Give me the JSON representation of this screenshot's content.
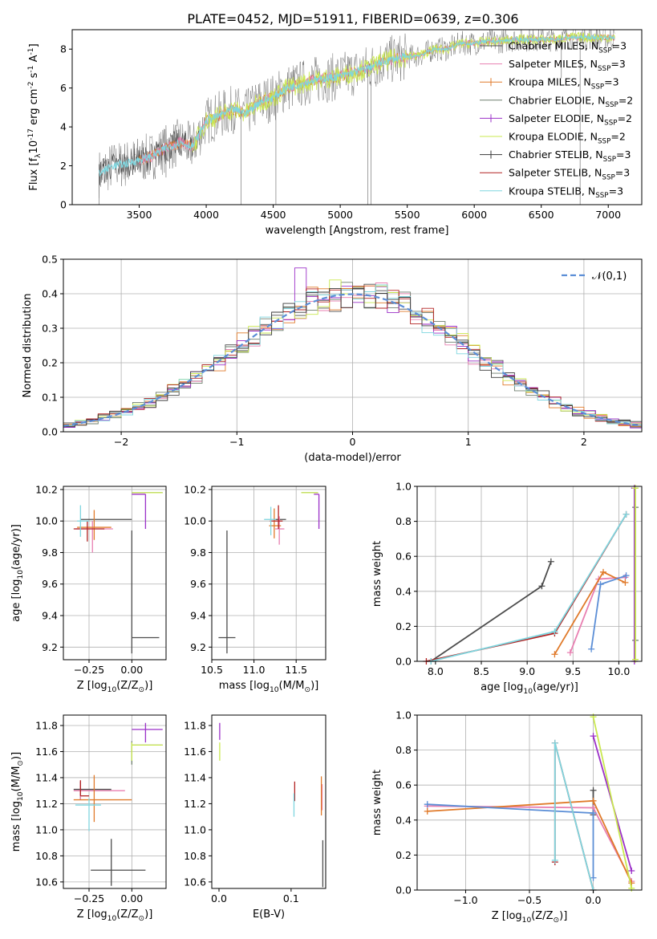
{
  "figure_title": "PLATE=0452, MJD=51911, FIBERID=0639, z=0.306",
  "colors": {
    "chabrier_miles": "#4d4d4d",
    "salpeter_miles": "#e87fb1",
    "kroupa_miles": "#e07a2a",
    "chabrier_elodie": "#6f7f6f",
    "salpeter_elodie": "#9b30c8",
    "kroupa_elodie": "#c9e84f",
    "chabrier_stelib": "#3a3a3a",
    "salpeter_stelib": "#b22222",
    "kroupa_stelib": "#7fd6df",
    "normal": "#5b8ed6",
    "grid": "#b0b0b0"
  },
  "chart_data": [
    {
      "id": "spectrum",
      "type": "line",
      "xlabel": "wavelength [Angstrom, rest frame]",
      "ylabel": "Flux [f$_\\lambda$10$^{-17}$ erg cm$^{-2}$ s$^{-1}$ A$^{-1}$]",
      "xlim": [
        3000,
        7250
      ],
      "ylim": [
        0,
        9
      ],
      "xticks": [
        3500,
        4000,
        4500,
        5000,
        5500,
        6000,
        6500,
        7000
      ],
      "yticks": [
        0,
        2,
        4,
        6,
        8
      ],
      "grid": false,
      "legend_position": "top-right",
      "legend": [
        {
          "label": "Chabrier MILES, N$_{SSP}$=3",
          "color_key": "chabrier_miles"
        },
        {
          "label": "Salpeter MILES, N$_{SSP}$=3",
          "color_key": "salpeter_miles"
        },
        {
          "label": "Kroupa MILES, N$_{SSP}$=3",
          "color_key": "kroupa_miles"
        },
        {
          "label": "Chabrier ELODIE, N$_{SSP}$=2",
          "color_key": "chabrier_elodie"
        },
        {
          "label": "Salpeter ELODIE, N$_{SSP}$=2",
          "color_key": "salpeter_elodie"
        },
        {
          "label": "Kroupa ELODIE, N$_{SSP}$=2",
          "color_key": "kroupa_elodie"
        },
        {
          "label": "Chabrier STELIB, N$_{SSP}$=3",
          "color_key": "chabrier_stelib"
        },
        {
          "label": "Salpeter STELIB, N$_{SSP}$=3",
          "color_key": "salpeter_stelib"
        },
        {
          "label": "Kroupa STELIB, N$_{SSP}$=3",
          "color_key": "kroupa_stelib"
        }
      ],
      "continuum": [
        [
          3200,
          1.6
        ],
        [
          3300,
          2.0
        ],
        [
          3400,
          2.1
        ],
        [
          3500,
          2.3
        ],
        [
          3600,
          2.5
        ],
        [
          3700,
          2.9
        ],
        [
          3800,
          3.2
        ],
        [
          3900,
          3.0
        ],
        [
          4000,
          4.3
        ],
        [
          4100,
          4.6
        ],
        [
          4200,
          4.9
        ],
        [
          4300,
          4.7
        ],
        [
          4400,
          5.3
        ],
        [
          4500,
          5.5
        ],
        [
          4600,
          6.0
        ],
        [
          4700,
          6.2
        ],
        [
          4800,
          6.4
        ],
        [
          4900,
          6.5
        ],
        [
          5000,
          6.6
        ],
        [
          5100,
          6.8
        ],
        [
          5200,
          7.0
        ],
        [
          5300,
          7.3
        ],
        [
          5400,
          7.5
        ],
        [
          5500,
          7.6
        ],
        [
          5600,
          7.7
        ],
        [
          5700,
          8.0
        ],
        [
          5800,
          8.0
        ],
        [
          5900,
          8.3
        ],
        [
          6000,
          8.3
        ],
        [
          6100,
          8.4
        ],
        [
          6200,
          8.4
        ],
        [
          6300,
          8.5
        ],
        [
          6400,
          8.5
        ],
        [
          6500,
          8.5
        ],
        [
          6600,
          8.5
        ],
        [
          6700,
          8.6
        ],
        [
          6800,
          8.6
        ],
        [
          6900,
          8.6
        ],
        [
          7000,
          8.6
        ],
        [
          7050,
          8.6
        ]
      ]
    },
    {
      "id": "residuals",
      "type": "line",
      "xlabel": "(data-model)/error",
      "ylabel": "Normed distribution",
      "xlim": [
        -2.5,
        2.5
      ],
      "ylim": [
        0,
        0.5
      ],
      "xticks": [
        -2,
        -1,
        0,
        1,
        2
      ],
      "yticks": [
        0.0,
        0.1,
        0.2,
        0.3,
        0.4,
        0.5
      ],
      "grid": true,
      "legend_position": "top-right",
      "legend": [
        {
          "label": "$\\mathcal{N}(0,1)$",
          "color_key": "normal"
        }
      ],
      "hist_bin_width": 0.1,
      "hist_start": -2.5
    },
    {
      "id": "age_vs_Z",
      "type": "scatter",
      "xlabel": "Z [log$_{10}$(Z/Z$_\\odot$)]",
      "ylabel": "age  [log$_{10}$(age/yr)]",
      "xlim": [
        -0.4,
        0.2
      ],
      "ylim": [
        9.12,
        10.22
      ],
      "xticks": [
        -0.25,
        0.0
      ],
      "yticks": [
        9.2,
        9.4,
        9.6,
        9.8,
        10.0,
        10.2
      ],
      "grid": true,
      "points": [
        {
          "key": "chabrier_miles",
          "x": 0.0,
          "y": 9.26,
          "xerr": [
            0.0,
            0.16
          ],
          "yerr": [
            0.1,
            0.68
          ]
        },
        {
          "key": "chabrier_miles",
          "x": -0.18,
          "y": 10.01,
          "xerr": [
            0.12,
            0.18
          ],
          "yerr": [
            0.0,
            0.0
          ]
        },
        {
          "key": "salpeter_miles",
          "x": -0.23,
          "y": 9.95,
          "xerr": [
            0.1,
            0.12
          ],
          "yerr": [
            0.15,
            0.05
          ]
        },
        {
          "key": "kroupa_miles",
          "x": -0.22,
          "y": 9.96,
          "xerr": [
            0.1,
            0.1
          ],
          "yerr": [
            0.08,
            0.11
          ]
        },
        {
          "key": "chabrier_elodie",
          "x": 0.0,
          "y": 10.18,
          "xerr": [
            0.0,
            0.18
          ],
          "yerr": [
            0.0,
            0.0
          ]
        },
        {
          "key": "salpeter_elodie",
          "x": 0.08,
          "y": 10.17,
          "xerr": [
            0.08,
            0.0
          ],
          "yerr": [
            0.22,
            0.0
          ]
        },
        {
          "key": "kroupa_elodie",
          "x": 0.0,
          "y": 10.18,
          "xerr": [
            0.0,
            0.18
          ],
          "yerr": [
            0.0,
            0.0
          ]
        },
        {
          "key": "salpeter_stelib",
          "x": -0.26,
          "y": 9.95,
          "xerr": [
            0.08,
            0.1
          ],
          "yerr": [
            0.08,
            0.05
          ]
        },
        {
          "key": "kroupa_stelib",
          "x": -0.3,
          "y": 10.0,
          "xerr": [
            0.02,
            0.05
          ],
          "yerr": [
            0.1,
            0.1
          ]
        }
      ]
    },
    {
      "id": "age_vs_mass",
      "type": "scatter",
      "xlabel": "mass [log$_{10}$(M/M$_\\odot$)]",
      "ylabel": "",
      "xlim": [
        10.5,
        11.85
      ],
      "ylim": [
        9.12,
        10.22
      ],
      "xticks": [
        10.5,
        11.0,
        11.5
      ],
      "yticks": [
        9.2,
        9.4,
        9.6,
        9.8,
        10.0,
        10.2
      ],
      "grid": true,
      "points": [
        {
          "key": "chabrier_miles",
          "x": 10.68,
          "y": 9.26,
          "xerr": [
            0.1,
            0.1
          ],
          "yerr": [
            0.1,
            0.68
          ]
        },
        {
          "key": "chabrier_miles",
          "x": 11.33,
          "y": 10.01,
          "xerr": [
            0.1,
            0.05
          ],
          "yerr": [
            0.0,
            0.0
          ]
        },
        {
          "key": "salpeter_miles",
          "x": 11.3,
          "y": 9.95,
          "xerr": [
            0.05,
            0.06
          ],
          "yerr": [
            0.1,
            0.08
          ]
        },
        {
          "key": "kroupa_miles",
          "x": 11.24,
          "y": 9.97,
          "xerr": [
            0.06,
            0.08
          ],
          "yerr": [
            0.08,
            0.11
          ]
        },
        {
          "key": "chabrier_elodie",
          "x": 11.66,
          "y": 10.18,
          "xerr": [
            0.1,
            0.1
          ],
          "yerr": [
            0.0,
            0.0
          ]
        },
        {
          "key": "salpeter_elodie",
          "x": 11.77,
          "y": 10.17,
          "xerr": [
            0.06,
            0.0
          ],
          "yerr": [
            0.22,
            0.0
          ]
        },
        {
          "key": "kroupa_elodie",
          "x": 11.66,
          "y": 10.18,
          "xerr": [
            0.1,
            0.1
          ],
          "yerr": [
            0.0,
            0.0
          ]
        },
        {
          "key": "salpeter_stelib",
          "x": 11.29,
          "y": 10.0,
          "xerr": [
            0.1,
            0.05
          ],
          "yerr": [
            0.05,
            0.1
          ]
        },
        {
          "key": "kroupa_stelib",
          "x": 11.2,
          "y": 10.01,
          "xerr": [
            0.08,
            0.06
          ],
          "yerr": [
            0.1,
            0.08
          ]
        }
      ]
    },
    {
      "id": "weight_vs_age",
      "type": "line",
      "xlabel": "age  [log$_{10}$(age/yr)]",
      "ylabel": "mass weight",
      "xlim": [
        7.8,
        10.25
      ],
      "ylim": [
        0,
        1
      ],
      "xticks": [
        8.0,
        8.5,
        9.0,
        9.5,
        10.0
      ],
      "yticks": [
        0.0,
        0.2,
        0.4,
        0.6,
        0.8,
        1.0
      ],
      "grid": true,
      "series": [
        {
          "key": "chabrier_miles",
          "x": [
            7.95,
            9.16,
            9.26
          ],
          "y": [
            0.0,
            0.43,
            0.57
          ]
        },
        {
          "key": "salpeter_miles",
          "x": [
            9.47,
            9.78,
            10.07
          ],
          "y": [
            0.05,
            0.47,
            0.48
          ]
        },
        {
          "key": "kroupa_miles",
          "x": [
            9.3,
            9.83,
            10.07
          ],
          "y": [
            0.04,
            0.51,
            0.45
          ]
        },
        {
          "key": "chabrier_elodie",
          "x": [
            10.18,
            10.18
          ],
          "y": [
            0.12,
            0.88
          ]
        },
        {
          "key": "salpeter_elodie",
          "x": [
            10.17,
            10.17
          ],
          "y": [
            0.0,
            0.99
          ]
        },
        {
          "key": "kroupa_elodie",
          "x": [
            10.18,
            10.18
          ],
          "y": [
            0.01,
            0.99
          ]
        },
        {
          "key": "normal",
          "x": [
            9.7,
            9.8,
            10.08
          ],
          "y": [
            0.07,
            0.44,
            0.49
          ]
        },
        {
          "key": "salpeter_stelib",
          "x": [
            7.9,
            9.3,
            10.08
          ],
          "y": [
            0.0,
            0.16,
            0.84
          ]
        },
        {
          "key": "kroupa_stelib",
          "x": [
            7.95,
            9.3,
            10.08
          ],
          "y": [
            0.0,
            0.17,
            0.84
          ]
        }
      ]
    },
    {
      "id": "mass_vs_Z",
      "type": "scatter",
      "xlabel": "Z [log$_{10}$(Z/Z$_\\odot$)]",
      "ylabel": "mass [log$_{10}$(M/M$_\\odot$)]",
      "xlim": [
        -0.4,
        0.2
      ],
      "ylim": [
        10.55,
        11.88
      ],
      "xticks": [
        -0.25,
        0.0
      ],
      "yticks": [
        10.6,
        10.8,
        11.0,
        11.2,
        11.4,
        11.6,
        11.8
      ],
      "grid": true,
      "points": [
        {
          "key": "chabrier_miles",
          "x": -0.12,
          "y": 10.69,
          "xerr": [
            0.12,
            0.2
          ],
          "yerr": [
            0.12,
            0.24
          ]
        },
        {
          "key": "chabrier_miles",
          "x": -0.3,
          "y": 11.31,
          "xerr": [
            0.04,
            0.18
          ],
          "yerr": [
            0.08,
            0.06
          ]
        },
        {
          "key": "salpeter_miles",
          "x": -0.3,
          "y": 11.3,
          "xerr": [
            0.04,
            0.26
          ],
          "yerr": [
            0.07,
            0.07
          ]
        },
        {
          "key": "kroupa_miles",
          "x": -0.22,
          "y": 11.23,
          "xerr": [
            0.12,
            0.22
          ],
          "yerr": [
            0.17,
            0.19
          ]
        },
        {
          "key": "chabrier_elodie",
          "x": 0.0,
          "y": 11.65,
          "xerr": [
            0.0,
            0.18
          ],
          "yerr": [
            0.15,
            0.03
          ]
        },
        {
          "key": "salpeter_elodie",
          "x": 0.08,
          "y": 11.77,
          "xerr": [
            0.08,
            0.1
          ],
          "yerr": [
            0.1,
            0.05
          ]
        },
        {
          "key": "kroupa_elodie",
          "x": 0.0,
          "y": 11.65,
          "xerr": [
            0.0,
            0.18
          ],
          "yerr": [
            0.12,
            0.02
          ]
        },
        {
          "key": "salpeter_stelib",
          "x": -0.3,
          "y": 11.26,
          "xerr": [
            0.0,
            0.05
          ],
          "yerr": [
            0.0,
            0.12
          ]
        },
        {
          "key": "kroupa_stelib",
          "x": -0.25,
          "y": 11.19,
          "xerr": [
            0.08,
            0.07
          ],
          "yerr": [
            0.2,
            0.05
          ]
        }
      ]
    },
    {
      "id": "mass_vs_ebv",
      "type": "scatter",
      "xlabel": "E(B-V)",
      "ylabel": "",
      "xlim": [
        -0.01,
        0.148
      ],
      "ylim": [
        10.55,
        11.88
      ],
      "xticks": [
        0.0,
        0.1
      ],
      "yticks": [
        10.6,
        10.8,
        11.0,
        11.2,
        11.4,
        11.6,
        11.8
      ],
      "grid": false,
      "points": [
        {
          "key": "chabrier_miles",
          "x": 0.144,
          "y": 10.7,
          "xerr": [
            0,
            0
          ],
          "yerr": [
            0.14,
            0.22
          ]
        },
        {
          "key": "salpeter_miles",
          "x": 0.143,
          "y": 11.25,
          "xerr": [
            0,
            0
          ],
          "yerr": [
            0.1,
            0.1
          ]
        },
        {
          "key": "kroupa_miles",
          "x": 0.142,
          "y": 11.23,
          "xerr": [
            0,
            0
          ],
          "yerr": [
            0.12,
            0.18
          ]
        },
        {
          "key": "salpeter_elodie",
          "x": 0.001,
          "y": 11.77,
          "xerr": [
            0,
            0
          ],
          "yerr": [
            0.08,
            0.05
          ]
        },
        {
          "key": "kroupa_elodie",
          "x": 0.001,
          "y": 11.63,
          "xerr": [
            0,
            0
          ],
          "yerr": [
            0.1,
            0.04
          ]
        },
        {
          "key": "salpeter_stelib",
          "x": 0.105,
          "y": 11.27,
          "xerr": [
            0,
            0
          ],
          "yerr": [
            0.05,
            0.1
          ]
        },
        {
          "key": "kroupa_stelib",
          "x": 0.104,
          "y": 11.18,
          "xerr": [
            0,
            0
          ],
          "yerr": [
            0.08,
            0.1
          ]
        }
      ]
    },
    {
      "id": "weight_vs_Z",
      "type": "line",
      "xlabel": "Z [log$_{10}$(Z/Z$_\\odot$)]",
      "ylabel": "mass weight",
      "xlim": [
        -1.38,
        0.38
      ],
      "ylim": [
        0,
        1
      ],
      "xticks": [
        -1.0,
        -0.5,
        0.0
      ],
      "yticks": [
        0.0,
        0.2,
        0.4,
        0.6,
        0.8,
        1.0
      ],
      "grid": true,
      "series": [
        {
          "key": "chabrier_miles",
          "x": [
            0.0,
            0.0
          ],
          "y": [
            0.43,
            0.57
          ]
        },
        {
          "key": "salpeter_miles",
          "x": [
            -1.3,
            0.0,
            0.3
          ],
          "y": [
            0.48,
            0.47,
            0.05
          ]
        },
        {
          "key": "kroupa_miles",
          "x": [
            -1.3,
            0.0,
            0.3
          ],
          "y": [
            0.45,
            0.51,
            0.04
          ]
        },
        {
          "key": "normal",
          "x": [
            -1.3,
            0.0,
            0.0
          ],
          "y": [
            0.49,
            0.44,
            0.07
          ]
        },
        {
          "key": "salpeter_elodie",
          "x": [
            0.0,
            0.3
          ],
          "y": [
            0.88,
            0.11
          ]
        },
        {
          "key": "kroupa_elodie",
          "x": [
            0.0,
            0.3
          ],
          "y": [
            0.99,
            0.01
          ]
        },
        {
          "key": "salpeter_stelib",
          "x": [
            -0.3,
            -0.3,
            0.0
          ],
          "y": [
            0.16,
            0.84,
            0.0
          ]
        },
        {
          "key": "kroupa_stelib",
          "x": [
            -0.3,
            -0.3,
            0.0
          ],
          "y": [
            0.17,
            0.84,
            0.0
          ]
        }
      ]
    }
  ]
}
